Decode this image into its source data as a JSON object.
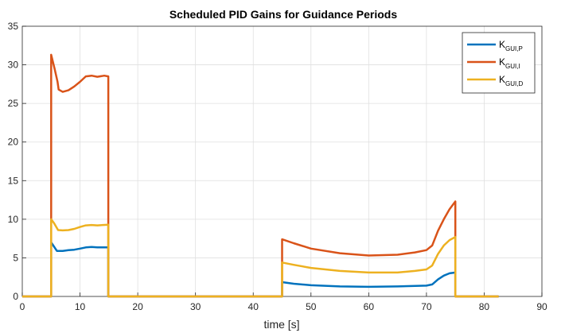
{
  "chart_data": {
    "type": "line",
    "title": "Scheduled PID Gains for Guidance Periods",
    "xlabel": "time [s]",
    "ylabel": "",
    "xlim": [
      0,
      90
    ],
    "ylim": [
      0,
      35
    ],
    "xticks": [
      0,
      10,
      20,
      30,
      40,
      50,
      60,
      70,
      80,
      90
    ],
    "yticks": [
      0,
      5,
      10,
      15,
      20,
      25,
      30,
      35
    ],
    "grid": true,
    "legend_position": "top-right",
    "series": [
      {
        "name": "K_GUI,P",
        "legend_main": "K",
        "legend_sub": "GUI,P",
        "color": "#0072BD",
        "points": [
          [
            0,
            0
          ],
          [
            5,
            0
          ],
          [
            5,
            7.0
          ],
          [
            6,
            5.9
          ],
          [
            7,
            5.9
          ],
          [
            8,
            6.0
          ],
          [
            9,
            6.05
          ],
          [
            10,
            6.2
          ],
          [
            11,
            6.35
          ],
          [
            12,
            6.4
          ],
          [
            13,
            6.35
          ],
          [
            14.9,
            6.35
          ],
          [
            14.9,
            0
          ],
          [
            45,
            0
          ],
          [
            45,
            1.85
          ],
          [
            47,
            1.65
          ],
          [
            50,
            1.45
          ],
          [
            55,
            1.3
          ],
          [
            60,
            1.25
          ],
          [
            65,
            1.3
          ],
          [
            70,
            1.4
          ],
          [
            71,
            1.55
          ],
          [
            72,
            2.2
          ],
          [
            73,
            2.7
          ],
          [
            74,
            3.0
          ],
          [
            75,
            3.1
          ],
          [
            75,
            0
          ],
          [
            82.5,
            0
          ]
        ]
      },
      {
        "name": "K_GUI,I",
        "legend_main": "K",
        "legend_sub": "GUI,I",
        "color": "#D95319",
        "points": [
          [
            0,
            0
          ],
          [
            5,
            0
          ],
          [
            5,
            31.3
          ],
          [
            5.6,
            29.5
          ],
          [
            6.1,
            27.8
          ],
          [
            6.3,
            26.8
          ],
          [
            7,
            26.5
          ],
          [
            8,
            26.7
          ],
          [
            9,
            27.2
          ],
          [
            10,
            27.8
          ],
          [
            11,
            28.5
          ],
          [
            12,
            28.6
          ],
          [
            13,
            28.45
          ],
          [
            14.2,
            28.6
          ],
          [
            14.9,
            28.5
          ],
          [
            14.9,
            0
          ],
          [
            45,
            0
          ],
          [
            45,
            7.4
          ],
          [
            47,
            6.9
          ],
          [
            50,
            6.2
          ],
          [
            55,
            5.6
          ],
          [
            60,
            5.3
          ],
          [
            65,
            5.4
          ],
          [
            68,
            5.7
          ],
          [
            70,
            6.0
          ],
          [
            71,
            6.6
          ],
          [
            72,
            8.5
          ],
          [
            73,
            10.0
          ],
          [
            74,
            11.3
          ],
          [
            75,
            12.3
          ],
          [
            75,
            0
          ],
          [
            82.5,
            0
          ]
        ]
      },
      {
        "name": "K_GUI,D",
        "legend_main": "K",
        "legend_sub": "GUI,D",
        "color": "#EDB120",
        "points": [
          [
            0,
            0
          ],
          [
            5,
            0
          ],
          [
            5,
            10.0
          ],
          [
            5.5,
            9.5
          ],
          [
            6.2,
            8.6
          ],
          [
            7,
            8.55
          ],
          [
            8,
            8.6
          ],
          [
            9,
            8.75
          ],
          [
            10,
            9.0
          ],
          [
            11,
            9.2
          ],
          [
            12,
            9.25
          ],
          [
            13,
            9.2
          ],
          [
            14.9,
            9.3
          ],
          [
            14.9,
            0
          ],
          [
            45,
            0
          ],
          [
            45,
            4.4
          ],
          [
            47,
            4.1
          ],
          [
            50,
            3.7
          ],
          [
            55,
            3.3
          ],
          [
            60,
            3.1
          ],
          [
            65,
            3.1
          ],
          [
            68,
            3.3
          ],
          [
            70,
            3.5
          ],
          [
            71,
            4.0
          ],
          [
            72,
            5.5
          ],
          [
            73,
            6.6
          ],
          [
            74,
            7.3
          ],
          [
            75,
            7.7
          ],
          [
            75,
            0
          ],
          [
            82.5,
            0
          ]
        ]
      }
    ]
  }
}
